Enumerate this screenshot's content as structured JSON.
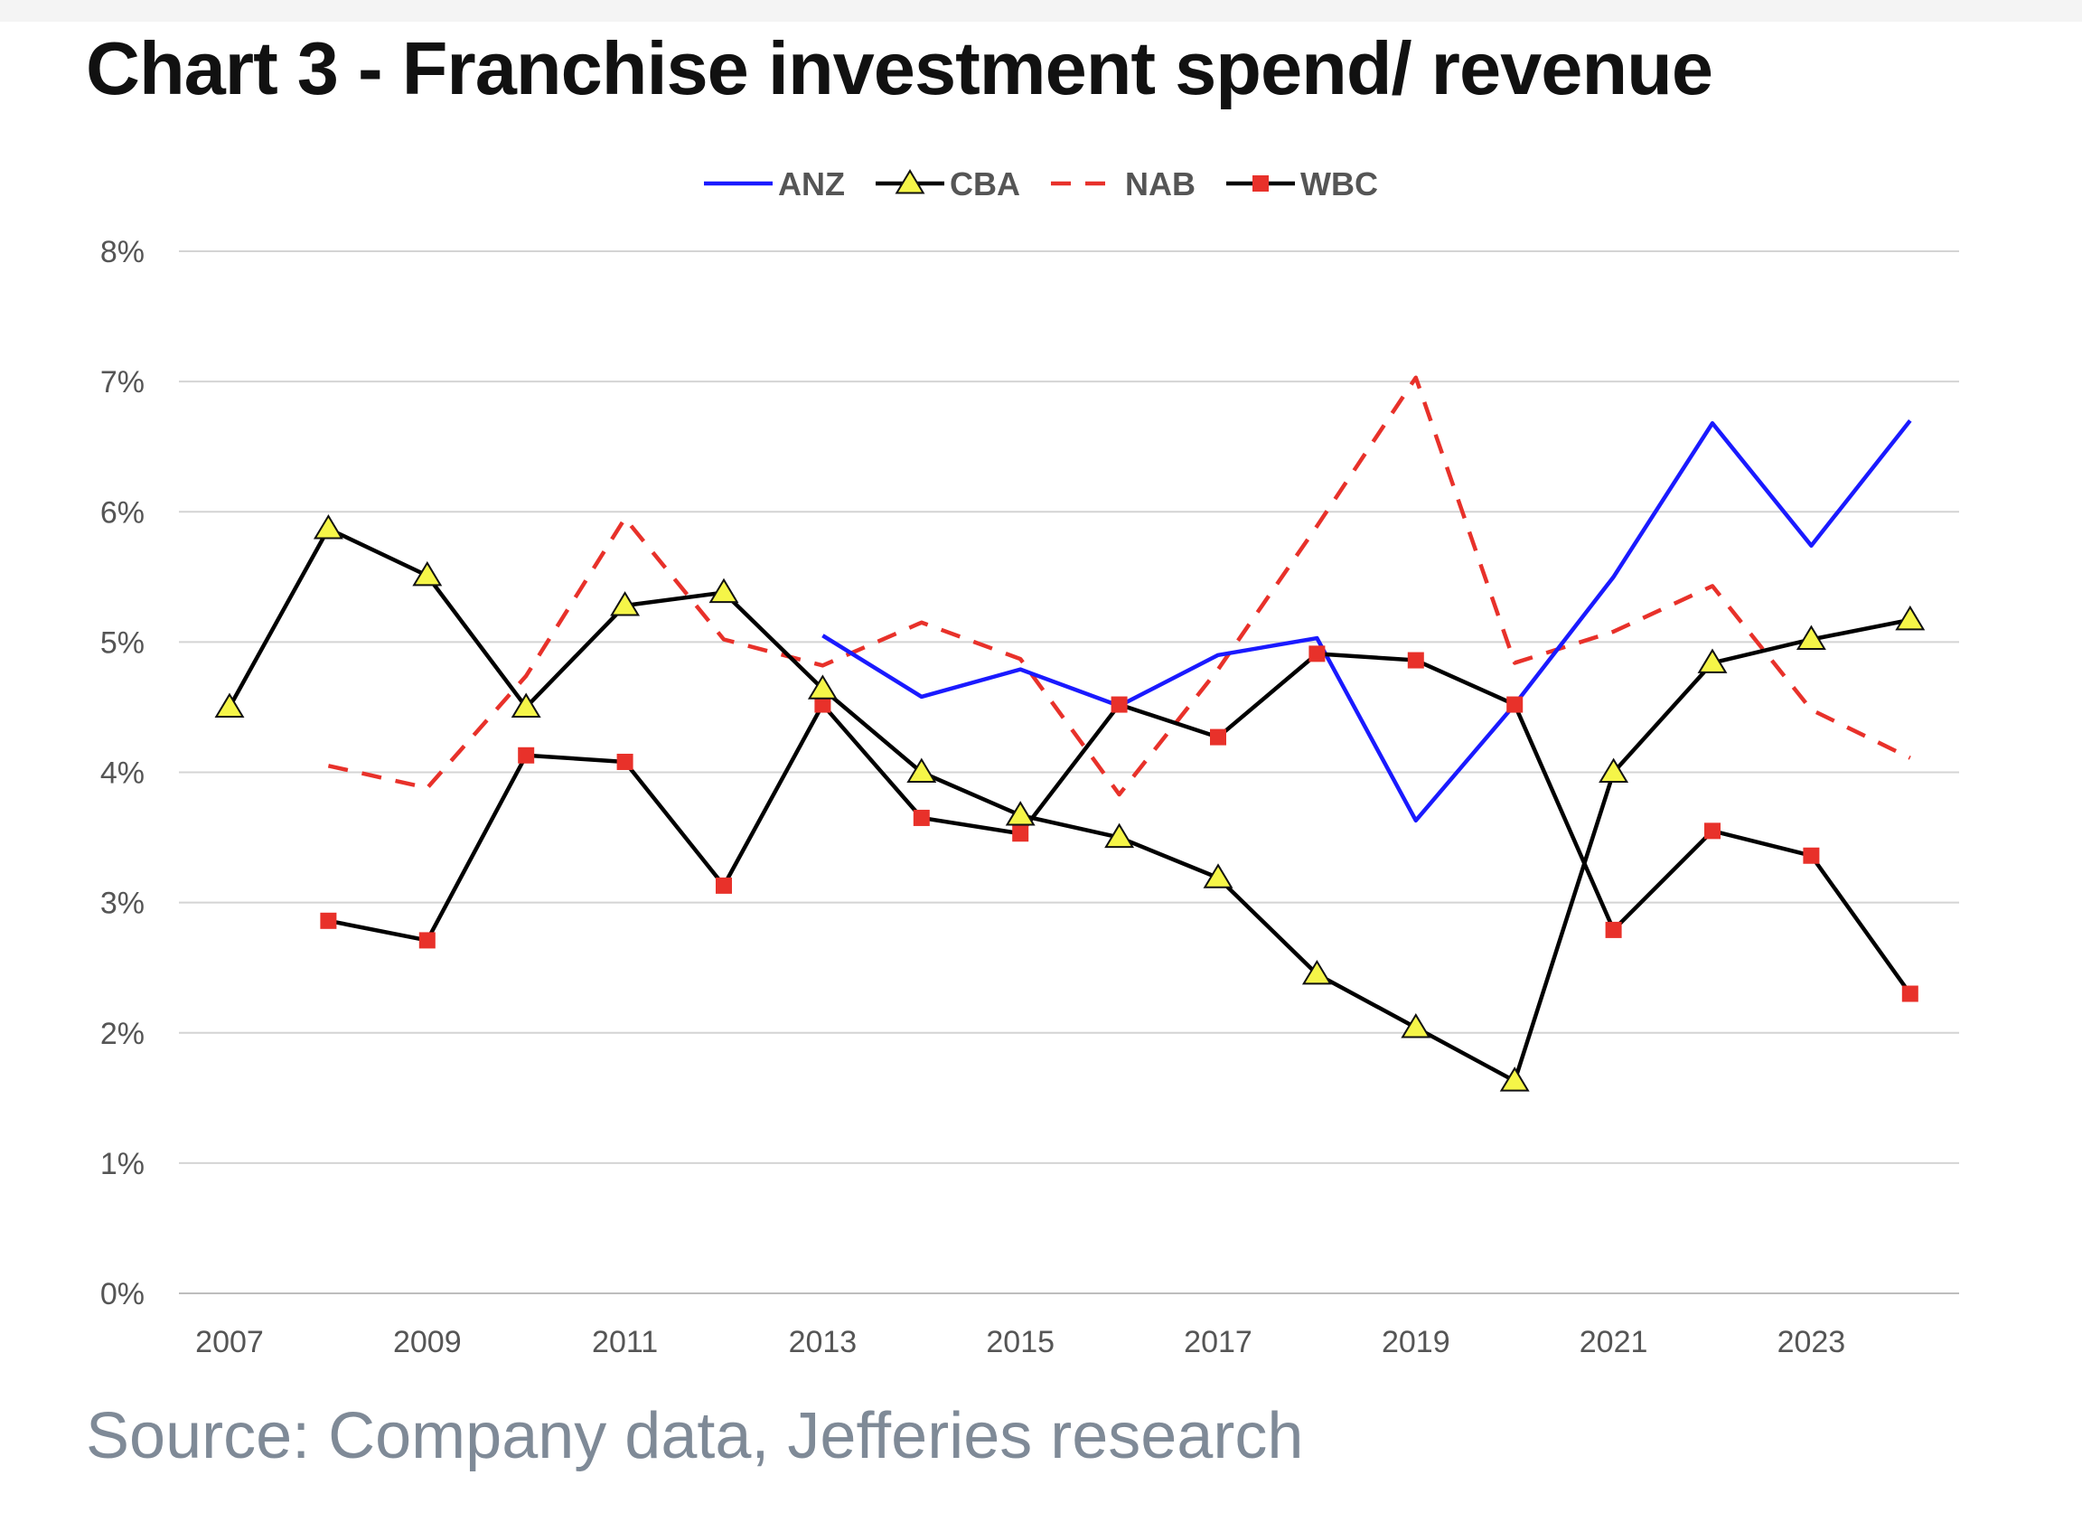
{
  "title": "Chart 3 - Franchise investment spend/ revenue",
  "source": "Source: Company data, Jefferies research",
  "chart_data": {
    "type": "line",
    "x": [
      2007,
      2008,
      2009,
      2010,
      2011,
      2012,
      2013,
      2014,
      2015,
      2016,
      2017,
      2018,
      2019,
      2020,
      2021,
      2022,
      2023,
      2024
    ],
    "x_tick_labels": [
      "2007",
      "2009",
      "2011",
      "2013",
      "2015",
      "2017",
      "2019",
      "2021",
      "2023"
    ],
    "x_tick_values": [
      2007,
      2009,
      2011,
      2013,
      2015,
      2017,
      2019,
      2021,
      2023
    ],
    "y_tick_labels": [
      "0%",
      "1%",
      "2%",
      "3%",
      "4%",
      "5%",
      "6%",
      "7%",
      "8%"
    ],
    "y_tick_values": [
      0,
      1,
      2,
      3,
      4,
      5,
      6,
      7,
      8
    ],
    "ylim": [
      0,
      8
    ],
    "xlim": [
      2007,
      2024
    ],
    "grid": true,
    "legend_position": "top",
    "series": [
      {
        "name": "ANZ",
        "color": "#1a1aff",
        "style": "solid",
        "marker": "none",
        "values": [
          null,
          null,
          null,
          null,
          null,
          null,
          5.05,
          4.58,
          4.79,
          4.51,
          4.9,
          5.03,
          3.63,
          4.52,
          5.5,
          6.68,
          5.74,
          6.7
        ]
      },
      {
        "name": "CBA",
        "color": "#000000",
        "style": "solid",
        "marker": "triangle",
        "marker_color": "#f5f548",
        "values": [
          4.5,
          5.87,
          5.51,
          4.5,
          5.28,
          5.38,
          4.64,
          4.0,
          3.67,
          3.5,
          3.19,
          2.45,
          2.04,
          1.63,
          4.0,
          4.84,
          5.02,
          5.17
        ]
      },
      {
        "name": "NAB",
        "color": "#e8312a",
        "style": "dashed",
        "marker": "none",
        "values": [
          null,
          4.05,
          3.88,
          4.74,
          5.95,
          5.02,
          4.82,
          5.15,
          4.87,
          3.83,
          4.79,
          5.89,
          7.03,
          4.84,
          5.08,
          5.43,
          4.48,
          4.11
        ]
      },
      {
        "name": "WBC",
        "color": "#000000",
        "style": "solid",
        "marker": "square",
        "marker_color": "#e8312a",
        "values": [
          null,
          2.86,
          2.71,
          4.13,
          4.08,
          3.13,
          4.52,
          3.65,
          3.53,
          4.52,
          4.27,
          4.91,
          4.86,
          4.52,
          2.79,
          3.55,
          3.36,
          2.3
        ]
      }
    ]
  }
}
